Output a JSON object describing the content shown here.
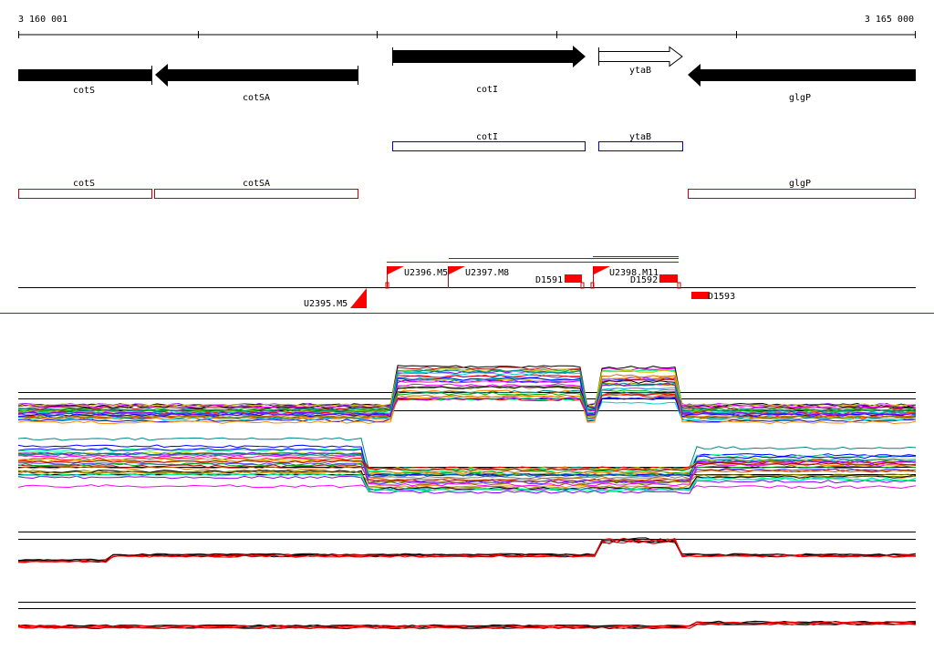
{
  "ruler": {
    "start_label": "3 160 001",
    "end_label": "3 165 000"
  },
  "colors": {
    "gene_fill": "#000000",
    "gene_open": "#ffffff",
    "annot_blue": "#0000cc",
    "annot_red": "#cc0000",
    "marker_red": "#ff0000",
    "track_line": "#000000"
  },
  "genes": {
    "cotS": "cotS",
    "cotSA": "cotSA",
    "cotI": "cotI",
    "ytaB": "ytaB",
    "glgP": "glgP"
  },
  "annotations_blue": {
    "cotI": "cotI",
    "ytaB": "ytaB"
  },
  "annotations_red": {
    "cotS": "cotS",
    "cotSA": "cotSA",
    "glgP": "glgP"
  },
  "upshifts": {
    "u2395": "U2395.M5",
    "u2396": "U2396.M5",
    "u2397": "U2397.M8",
    "u2398": "U2398.M11"
  },
  "downshifts": {
    "d1591": "D1591",
    "d1592": "D1592",
    "d1593": "D1593"
  },
  "icons": {
    "upshift_flag": "flag-icon",
    "downshift_box": "box-icon"
  }
}
